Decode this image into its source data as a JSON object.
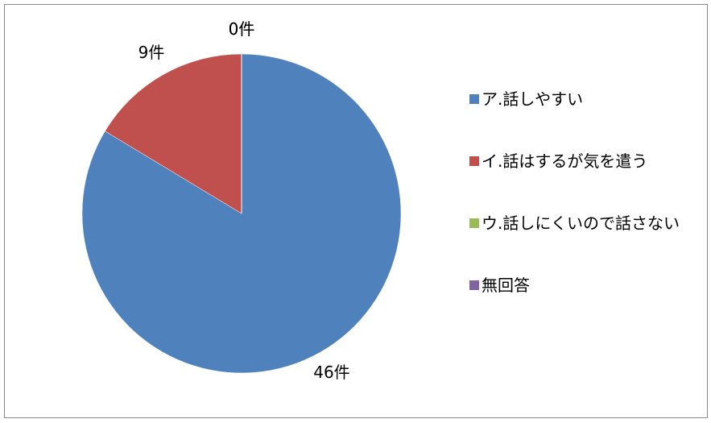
{
  "chart_data": {
    "type": "pie",
    "categories": [
      "ア.話しやすい",
      "イ.話はするが気を遣う",
      "ウ.話しにくいので話さない",
      "無回答"
    ],
    "values": [
      46,
      9,
      0,
      0
    ],
    "value_labels": [
      "46件",
      "9件",
      "0件",
      "0件"
    ],
    "colors": [
      "#4f81bd",
      "#c0504d",
      "#9bbb59",
      "#8064a2"
    ],
    "legend": "right"
  }
}
